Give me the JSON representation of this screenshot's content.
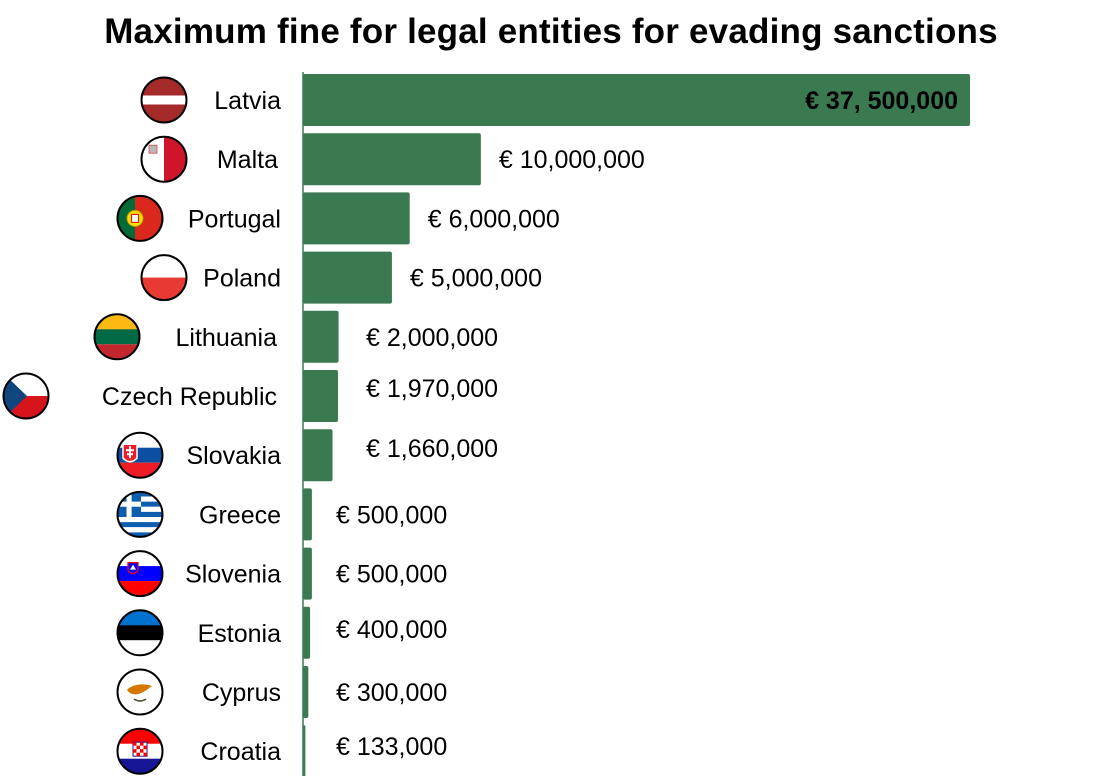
{
  "chart_data": {
    "type": "bar",
    "orientation": "horizontal",
    "title": "Maximum fine for legal entities for evading sanctions",
    "xlabel": "",
    "ylabel": "",
    "xlim": [
      0,
      37500000
    ],
    "grid": false,
    "legend": "none",
    "bar_color": "#3b7a50",
    "categories": [
      "Latvia",
      "Malta",
      "Portugal",
      "Poland",
      "Lithuania",
      "Czech Republic",
      "Slovakia",
      "Greece",
      "Slovenia",
      "Estonia",
      "Cyprus",
      "Croatia"
    ],
    "values": [
      37500000,
      10000000,
      6000000,
      5000000,
      2000000,
      1970000,
      1660000,
      500000,
      500000,
      400000,
      300000,
      133000
    ],
    "value_labels": [
      "€ 37, 500,000",
      "€ 10,000,000",
      "€ 6,000,000",
      "€ 5,000,000",
      "€ 2,000,000",
      "€ 1,970,000",
      "€ 1,660,000",
      "€ 500,000",
      "€ 500,000",
      "€ 400,000",
      "€ 300,000",
      "€ 133,000"
    ],
    "flag_icons": [
      "latvia-flag-icon",
      "malta-flag-icon",
      "portugal-flag-icon",
      "poland-flag-icon",
      "lithuania-flag-icon",
      "czech-republic-flag-icon",
      "slovakia-flag-icon",
      "greece-flag-icon",
      "slovenia-flag-icon",
      "estonia-flag-icon",
      "cyprus-flag-icon",
      "croatia-flag-icon"
    ]
  }
}
